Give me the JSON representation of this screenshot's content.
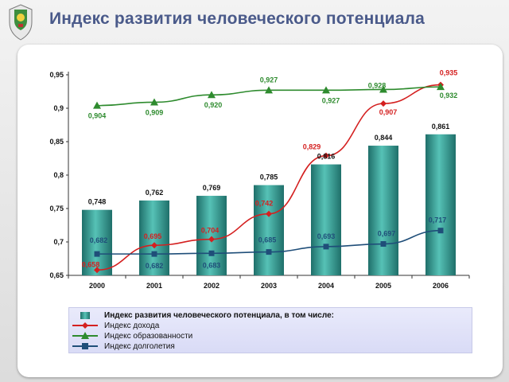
{
  "header": {
    "title": "Индекс развития человеческого потенциала"
  },
  "colors": {
    "title": "#4a5a8a",
    "bar": "#3aa39a",
    "income": "#d42020",
    "education": "#2e8b2e",
    "longevity": "#1f4e79"
  },
  "chart_data": {
    "type": "bar",
    "categories": [
      "2000",
      "2001",
      "2002",
      "2003",
      "2004",
      "2005",
      "2006"
    ],
    "ylim": [
      0.65,
      0.95
    ],
    "yticks": [
      "0,95",
      "0,9",
      "0,85",
      "0,8",
      "0,75",
      "0,7",
      "0,65"
    ],
    "series": [
      {
        "name": "Индекс развития человеческого потенциала, в том числе:",
        "type": "bar",
        "values": [
          0.748,
          0.762,
          0.769,
          0.785,
          0.816,
          0.844,
          0.861
        ],
        "labels": [
          "0,748",
          "0,762",
          "0,769",
          "0,785",
          "0,816",
          "0,844",
          "0,861"
        ]
      },
      {
        "name": "Индекс дохода",
        "type": "line",
        "values": [
          0.658,
          0.695,
          0.704,
          0.742,
          0.829,
          0.907,
          0.935
        ],
        "labels": [
          "0,658",
          "0,695",
          "0,704",
          "0,742",
          "0,829",
          "0,907",
          "0,935"
        ]
      },
      {
        "name": "Индекс образованности",
        "type": "line",
        "values": [
          0.904,
          0.909,
          0.92,
          0.927,
          0.927,
          0.928,
          0.932
        ],
        "labels": [
          "0,904",
          "0,909",
          "0,920",
          "0,927",
          "0,927",
          "0,928",
          "0,932"
        ]
      },
      {
        "name": "Индекс долголетия",
        "type": "line",
        "values": [
          0.682,
          0.682,
          0.683,
          0.685,
          0.693,
          0.697,
          0.717
        ],
        "labels": [
          "0,682",
          "0,682",
          "0,683",
          "0,685",
          "0,693",
          "0,697",
          "0,717"
        ]
      }
    ],
    "grid": false,
    "legend_position": "bottom"
  }
}
